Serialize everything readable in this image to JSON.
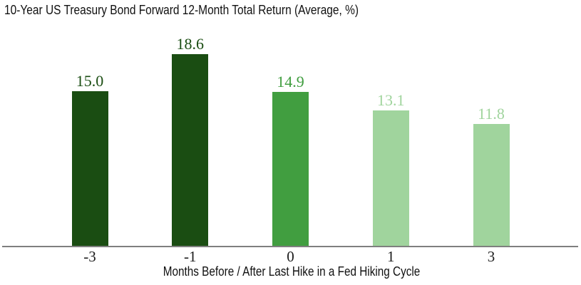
{
  "chart_data": {
    "type": "bar",
    "title": "10-Year US Treasury Bond Forward 12-Month Total Return (Average, %)",
    "xlabel": "Months Before / After Last Hike in a Fed Hiking Cycle",
    "ylabel": "",
    "categories": [
      "-3",
      "-1",
      "0",
      "1",
      "3"
    ],
    "values": [
      15.0,
      18.6,
      14.9,
      13.1,
      11.8
    ],
    "value_labels": [
      "15.0",
      "18.6",
      "14.9",
      "13.1",
      "11.8"
    ],
    "bar_colors": [
      "#1a4d12",
      "#1a4d12",
      "#419e40",
      "#a0d49d",
      "#a0d49d"
    ],
    "label_colors": [
      "#1a4d12",
      "#1a4d12",
      "#419e40",
      "#a0d49d",
      "#a0d49d"
    ],
    "ylim": [
      0,
      20
    ],
    "grid": false,
    "legend": false,
    "y_axis_shown": false,
    "axis_line_color": "#7f7f7f",
    "text_color": "#111111"
  }
}
